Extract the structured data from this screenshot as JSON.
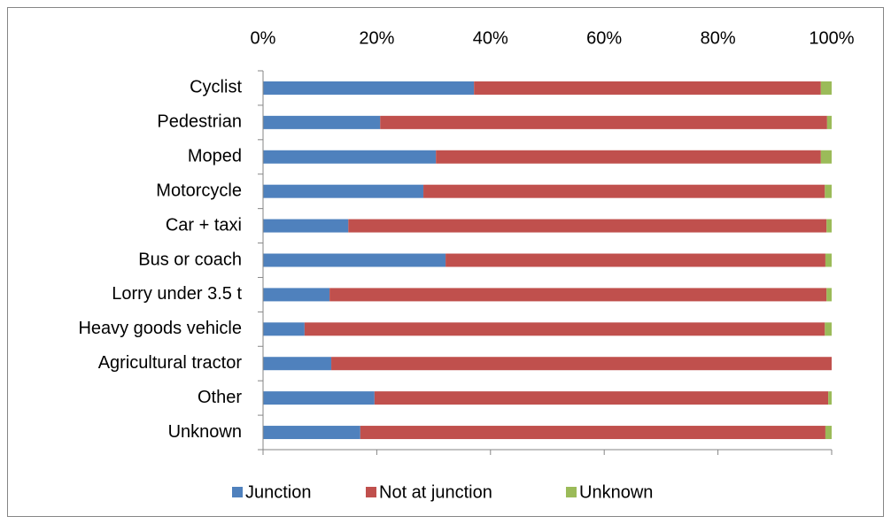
{
  "chart_data": {
    "type": "stacked-bar-horizontal",
    "categories": [
      "Cyclist",
      "Pedestrian",
      "Moped",
      "Motorcycle",
      "Car + taxi",
      "Bus or coach",
      "Lorry under 3.5 t",
      "Heavy goods vehicle",
      "Agricultural tractor",
      "Other",
      "Unknown"
    ],
    "series": [
      {
        "name": "Junction",
        "color": "#4f81bd",
        "values": [
          37.1,
          20.6,
          30.4,
          28.2,
          15.0,
          32.1,
          11.7,
          7.3,
          12.0,
          19.6,
          17.1
        ]
      },
      {
        "name": "Not at junction",
        "color": "#c0504d",
        "values": [
          61.0,
          78.6,
          67.7,
          70.6,
          84.1,
          66.8,
          87.4,
          91.5,
          88.0,
          79.8,
          81.8
        ]
      },
      {
        "name": "Unknown",
        "color": "#9bbb59",
        "values": [
          1.9,
          0.8,
          1.9,
          1.2,
          0.9,
          1.1,
          0.9,
          1.2,
          0,
          0.6,
          1.1
        ]
      }
    ],
    "xlim": [
      0,
      100
    ],
    "xticks": [
      {
        "value": 0,
        "label": "0%"
      },
      {
        "value": 20,
        "label": "20%"
      },
      {
        "value": 40,
        "label": "40%"
      },
      {
        "value": 60,
        "label": "60%"
      },
      {
        "value": 80,
        "label": "80%"
      },
      {
        "value": 100,
        "label": "100%"
      }
    ],
    "grid": false,
    "legend": "bottom"
  }
}
